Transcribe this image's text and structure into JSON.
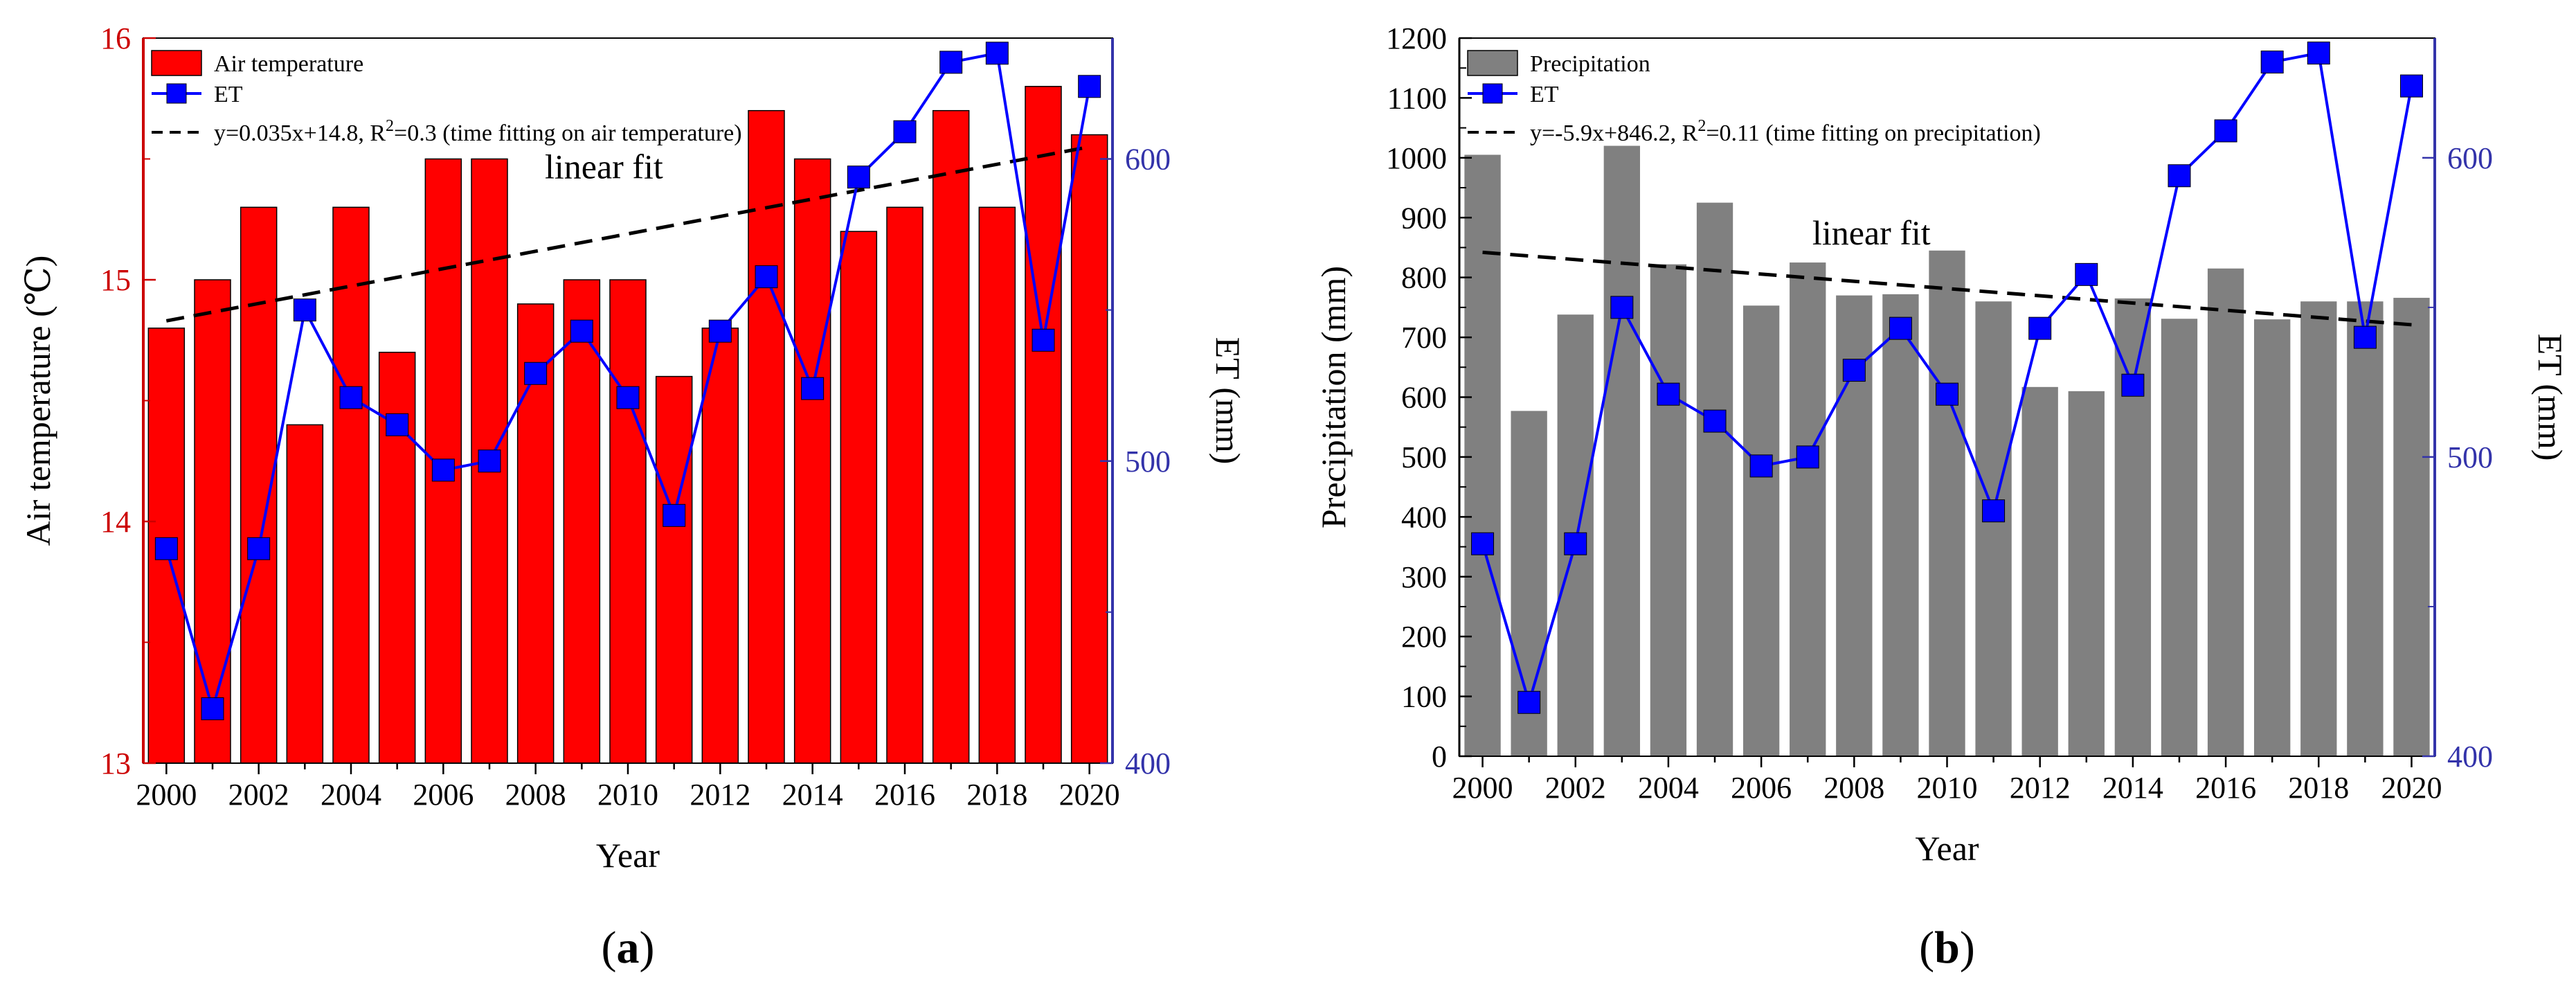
{
  "chart_data": [
    {
      "type": "bar",
      "panel_label": "(a)",
      "panel_letter": "a",
      "categories": [
        2000,
        2001,
        2002,
        2003,
        2004,
        2005,
        2006,
        2007,
        2008,
        2009,
        2010,
        2011,
        2012,
        2013,
        2014,
        2015,
        2016,
        2017,
        2018,
        2019,
        2020
      ],
      "xlabel": "Year",
      "x_tick_labels": [
        "2000",
        "2002",
        "2004",
        "2006",
        "2008",
        "2010",
        "2012",
        "2014",
        "2016",
        "2018",
        "2020"
      ],
      "ylabel": "Air temperature (℃)",
      "ylim": [
        13,
        16
      ],
      "y_ticks": [
        "13",
        "14",
        "15",
        "16"
      ],
      "y2label": "ET (mm)",
      "y2lim": [
        400,
        640
      ],
      "y2_ticks": [
        "400",
        "500",
        "600"
      ],
      "series": [
        {
          "name": "Air temperature",
          "kind": "bar",
          "color": "#ff0000",
          "values": [
            14.8,
            15.0,
            15.3,
            14.4,
            15.3,
            14.7,
            15.5,
            15.5,
            14.9,
            15.0,
            15.0,
            14.6,
            14.8,
            15.7,
            15.5,
            15.2,
            15.3,
            15.7,
            15.3,
            15.8,
            15.6
          ]
        },
        {
          "name": "ET",
          "kind": "line",
          "axis": "right",
          "color": "#0000ff",
          "values": [
            471,
            418,
            471,
            550,
            521,
            512,
            497,
            500,
            529,
            543,
            521,
            482,
            543,
            561,
            524,
            594,
            609,
            632,
            635,
            540,
            624
          ]
        }
      ],
      "fit": {
        "x": [
          2000,
          2020
        ],
        "y": [
          14.83,
          15.55
        ],
        "color": "#000000"
      },
      "legend": {
        "bar_label": "Air temperature",
        "line_label": "ET",
        "fit_pre": "y=0.035x+14.8, R",
        "fit_sup": "2",
        "fit_post": "=0.3 (time fitting on air temperature)"
      },
      "annotation": "linear fit",
      "colors": {
        "left_axis": "#cc0000",
        "right_axis": "#3333aa"
      }
    },
    {
      "type": "bar",
      "panel_label": "(b)",
      "panel_letter": "b",
      "categories": [
        2000,
        2001,
        2002,
        2003,
        2004,
        2005,
        2006,
        2007,
        2008,
        2009,
        2010,
        2011,
        2012,
        2013,
        2014,
        2015,
        2016,
        2017,
        2018,
        2019,
        2020
      ],
      "xlabel": "Year",
      "x_tick_labels": [
        "2000",
        "2002",
        "2004",
        "2006",
        "2008",
        "2010",
        "2012",
        "2014",
        "2016",
        "2018",
        "2020"
      ],
      "ylabel": "Precipitation (mm)",
      "ylim": [
        0,
        1200
      ],
      "y_ticks": [
        "0",
        "100",
        "200",
        "300",
        "400",
        "500",
        "600",
        "700",
        "800",
        "900",
        "1000",
        "1100",
        "1200"
      ],
      "y2label": "ET (mm)",
      "y2lim": [
        400,
        640
      ],
      "y2_ticks": [
        "400",
        "500",
        "600"
      ],
      "series": [
        {
          "name": "Precipitation",
          "kind": "bar",
          "color": "#808080",
          "values": [
            1005,
            577,
            738,
            1020,
            822,
            925,
            753,
            825,
            770,
            772,
            845,
            760,
            617,
            610,
            765,
            731,
            815,
            730,
            760,
            760,
            766
          ]
        },
        {
          "name": "ET",
          "kind": "line",
          "axis": "right",
          "color": "#0000ff",
          "values": [
            471,
            418,
            471,
            550,
            521,
            512,
            497,
            500,
            529,
            543,
            521,
            482,
            543,
            561,
            524,
            594,
            609,
            632,
            635,
            540,
            624
          ]
        }
      ],
      "fit": {
        "x": [
          2000,
          2020
        ],
        "y": [
          842,
          721
        ],
        "color": "#000000"
      },
      "legend": {
        "bar_label": "Precipitation",
        "line_label": "ET",
        "fit_pre": "y=-5.9x+846.2, R",
        "fit_sup": "2",
        "fit_post": "=0.11 (time fitting on precipitation)"
      },
      "annotation": "linear fit",
      "colors": {
        "left_axis": "#333333",
        "right_axis": "#3333aa"
      }
    }
  ]
}
